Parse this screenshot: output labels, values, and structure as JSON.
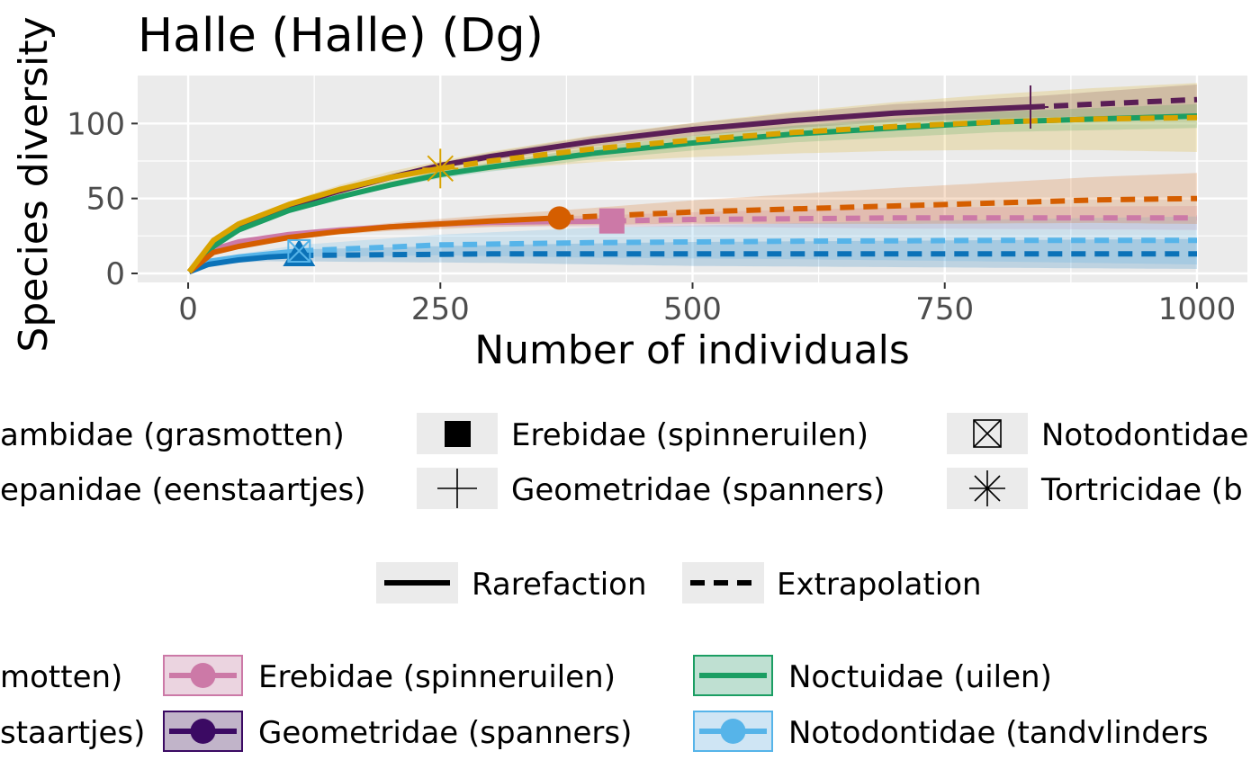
{
  "chart_data": {
    "type": "line",
    "title": "Halle (Halle) (Dg)",
    "xlabel": "Number of individuals",
    "ylabel": "Species diversity",
    "xlim": [
      -50,
      1050
    ],
    "ylim": [
      -6,
      132
    ],
    "xticks": [
      "0",
      "250",
      "500",
      "750",
      "1000"
    ],
    "xtick_values": [
      0,
      250,
      500,
      750,
      1000
    ],
    "yticks": [
      "0",
      "50",
      "100"
    ],
    "ytick_values": [
      0,
      50,
      100
    ],
    "grid": true,
    "series": [
      {
        "name": "Erebidae (spinneruilen)",
        "color": "#CC79A7",
        "observed": [
          420,
          35
        ],
        "rarefaction": [
          [
            1,
            1
          ],
          [
            25,
            16
          ],
          [
            50,
            21
          ],
          [
            100,
            26
          ],
          [
            150,
            29
          ],
          [
            200,
            31
          ],
          [
            250,
            33
          ],
          [
            300,
            34
          ],
          [
            350,
            34.5
          ],
          [
            420,
            35
          ]
        ],
        "extrapolation": [
          [
            420,
            35
          ],
          [
            500,
            36
          ],
          [
            600,
            36.5
          ],
          [
            700,
            37
          ],
          [
            800,
            37
          ],
          [
            900,
            37
          ],
          [
            1000,
            37
          ]
        ],
        "ci_width": [
          [
            1,
            0
          ],
          [
            420,
            4
          ],
          [
            700,
            7
          ],
          [
            1000,
            8
          ]
        ]
      },
      {
        "name": "Geometridae (spanners)",
        "color": "#5A1E56",
        "observed": [
          835,
          111
        ],
        "rarefaction": [
          [
            1,
            1
          ],
          [
            25,
            20
          ],
          [
            50,
            32
          ],
          [
            100,
            45
          ],
          [
            150,
            55
          ],
          [
            200,
            64
          ],
          [
            250,
            72
          ],
          [
            300,
            78
          ],
          [
            400,
            88
          ],
          [
            500,
            96
          ],
          [
            600,
            102
          ],
          [
            700,
            107
          ],
          [
            835,
            111
          ]
        ],
        "extrapolation": [
          [
            835,
            111
          ],
          [
            900,
            113
          ],
          [
            1000,
            116
          ]
        ],
        "ci_width": [
          [
            1,
            0
          ],
          [
            835,
            7
          ],
          [
            1000,
            10
          ]
        ]
      },
      {
        "name": "Noctuidae (uilen)",
        "color": "#1B9E63",
        "observed": [
          1000,
          105
        ],
        "rarefaction": [
          [
            1,
            1
          ],
          [
            25,
            18
          ],
          [
            50,
            29
          ],
          [
            100,
            42
          ],
          [
            150,
            51
          ],
          [
            200,
            59
          ],
          [
            250,
            66
          ],
          [
            300,
            71
          ],
          [
            400,
            80
          ],
          [
            500,
            87
          ],
          [
            600,
            93
          ],
          [
            700,
            97
          ],
          [
            800,
            101
          ],
          [
            900,
            103
          ],
          [
            1000,
            105
          ]
        ],
        "extrapolation": [],
        "ci_width": [
          [
            1,
            0
          ],
          [
            500,
            5
          ],
          [
            1000,
            8
          ]
        ]
      },
      {
        "name": "Notodontidae (tandvlinders)",
        "color": "#56B4E9",
        "observed": [
          110,
          15
        ],
        "rarefaction": [
          [
            1,
            1
          ],
          [
            20,
            8
          ],
          [
            50,
            11
          ],
          [
            80,
            13
          ],
          [
            110,
            15
          ]
        ],
        "extrapolation": [
          [
            110,
            15
          ],
          [
            250,
            19
          ],
          [
            400,
            20.5
          ],
          [
            600,
            21.5
          ],
          [
            800,
            22
          ],
          [
            1000,
            22
          ]
        ],
        "ci_width": [
          [
            1,
            0
          ],
          [
            110,
            4
          ],
          [
            400,
            10
          ],
          [
            1000,
            16
          ]
        ]
      },
      {
        "name": "Drepanidae (eenstaartjes)",
        "color": "#0B72B8",
        "observed": [
          110,
          12
        ],
        "rarefaction": [
          [
            1,
            1
          ],
          [
            20,
            6
          ],
          [
            50,
            9
          ],
          [
            80,
            11
          ],
          [
            110,
            12
          ]
        ],
        "extrapolation": [
          [
            110,
            12
          ],
          [
            300,
            13
          ],
          [
            600,
            13
          ],
          [
            1000,
            13
          ]
        ],
        "ci_width": [
          [
            1,
            0
          ],
          [
            110,
            4
          ],
          [
            500,
            8
          ],
          [
            1000,
            10
          ]
        ]
      },
      {
        "name": "Tortricidae",
        "color": "#D55E00",
        "observed": [
          368,
          37
        ],
        "rarefaction": [
          [
            1,
            1
          ],
          [
            25,
            14
          ],
          [
            50,
            18
          ],
          [
            100,
            24
          ],
          [
            150,
            28
          ],
          [
            200,
            31
          ],
          [
            250,
            33
          ],
          [
            300,
            35
          ],
          [
            368,
            37
          ]
        ],
        "extrapolation": [
          [
            368,
            37
          ],
          [
            500,
            41
          ],
          [
            600,
            43
          ],
          [
            700,
            45
          ],
          [
            800,
            47
          ],
          [
            900,
            49
          ],
          [
            1000,
            50
          ]
        ],
        "ci_width": [
          [
            1,
            0
          ],
          [
            368,
            5
          ],
          [
            700,
            12
          ],
          [
            1000,
            17
          ]
        ]
      },
      {
        "name": "Crambidae (grasmotten)",
        "color": "#D9A300",
        "observed": [
          250,
          70
        ],
        "rarefaction": [
          [
            1,
            1
          ],
          [
            25,
            22
          ],
          [
            50,
            33
          ],
          [
            100,
            46
          ],
          [
            150,
            56
          ],
          [
            200,
            64
          ],
          [
            250,
            70
          ]
        ],
        "extrapolation": [
          [
            250,
            70
          ],
          [
            300,
            75
          ],
          [
            400,
            83
          ],
          [
            500,
            89
          ],
          [
            600,
            94
          ],
          [
            700,
            98
          ],
          [
            800,
            101
          ],
          [
            900,
            103
          ],
          [
            1000,
            104
          ]
        ],
        "ci_width": [
          [
            1,
            0
          ],
          [
            250,
            5
          ],
          [
            600,
            14
          ],
          [
            1000,
            23
          ]
        ]
      }
    ]
  },
  "legend_shapes": {
    "col1": [
      "ambidae (grasmotten)",
      "epanidae (eenstaartjes)"
    ],
    "col2": [
      "Erebidae (spinneruilen)",
      "Geometridae (spanners)"
    ],
    "col3": [
      "Notodontidae",
      "Tortricidae (b"
    ]
  },
  "legend_linetype": [
    "Rarefaction",
    "Extrapolation"
  ],
  "legend_colors": {
    "col1": [
      "motten)",
      "staartjes)"
    ],
    "col2": [
      "Erebidae (spinneruilen)",
      "Geometridae (spanners)"
    ],
    "col3": [
      "Noctuidae (uilen)",
      "Notodontidae (tandvlinders"
    ]
  }
}
